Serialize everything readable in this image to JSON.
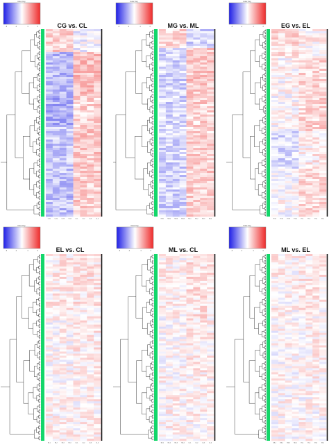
{
  "chart_data": [
    {
      "type": "heatmap",
      "title": "CG vs. CL",
      "legend": {
        "title": "Color Key",
        "ticks": [
          "-3",
          "-1",
          "1",
          "3"
        ],
        "low_color": "#1f1fe6",
        "mid_color": "#ffffff",
        "high_color": "#ee2a2a",
        "placement": "top-left"
      },
      "columns": [
        "CG1",
        "CG2",
        "CG3",
        "CG4",
        "CL1",
        "CL2",
        "CL3",
        "CL4"
      ],
      "row_colorbar_color": "#13d66a",
      "pattern": {
        "split_at_column": 4,
        "blocks": [
          {
            "start": 0.0,
            "end": 0.12,
            "left": 0.4,
            "right": -0.1
          },
          {
            "start": 0.12,
            "end": 0.34,
            "left": -0.55,
            "right": 0.55
          },
          {
            "start": 0.34,
            "end": 0.52,
            "left": -0.65,
            "right": 0.35
          },
          {
            "start": 0.52,
            "end": 0.78,
            "left": -0.45,
            "right": 0.45
          },
          {
            "start": 0.78,
            "end": 1.0,
            "left": -0.5,
            "right": 0.4
          }
        ]
      }
    },
    {
      "type": "heatmap",
      "title": "MG vs. ML",
      "legend": {
        "title": "Color Key",
        "ticks": [
          "-3",
          "-1",
          "1",
          "3"
        ],
        "low_color": "#1f1fe6",
        "mid_color": "#ffffff",
        "high_color": "#ee2a2a",
        "placement": "top-left"
      },
      "columns": [
        "MG1",
        "MG2",
        "MG3",
        "MG4",
        "ML1",
        "ML2",
        "ML3",
        "ML4"
      ],
      "row_colorbar_color": "#13d66a",
      "pattern": {
        "split_at_column": 4,
        "blocks": [
          {
            "start": 0.0,
            "end": 0.1,
            "left": 0.35,
            "right": -0.35
          },
          {
            "start": 0.1,
            "end": 0.4,
            "left": -0.35,
            "right": 0.45
          },
          {
            "start": 0.4,
            "end": 0.7,
            "left": -0.3,
            "right": 0.35
          },
          {
            "start": 0.7,
            "end": 1.0,
            "left": -0.35,
            "right": 0.4
          }
        ]
      }
    },
    {
      "type": "heatmap",
      "title": "EG vs. EL",
      "legend": {
        "title": "Color Key",
        "ticks": [
          "-3",
          "-1",
          "1",
          "3"
        ],
        "low_color": "#1f1fe6",
        "mid_color": "#ffffff",
        "high_color": "#ee2a2a",
        "placement": "top-left"
      },
      "columns": [
        "EG1",
        "EG2",
        "EG3",
        "EG4",
        "EL1",
        "EL2",
        "EL3",
        "EL4"
      ],
      "row_colorbar_color": "#13d66a",
      "pattern": {
        "split_at_column": 4,
        "blocks": [
          {
            "start": 0.0,
            "end": 0.15,
            "left": 0.3,
            "right": 0.1
          },
          {
            "start": 0.15,
            "end": 0.55,
            "left": 0.05,
            "right": 0.35
          },
          {
            "start": 0.55,
            "end": 0.75,
            "left": -0.3,
            "right": 0.15
          },
          {
            "start": 0.75,
            "end": 1.0,
            "left": 0.0,
            "right": 0.3
          }
        ]
      }
    },
    {
      "type": "heatmap",
      "title": "EL vs. CL",
      "legend": {
        "title": "Color Key",
        "ticks": [
          "-3",
          "-1",
          "1",
          "3"
        ],
        "low_color": "#1f1fe6",
        "mid_color": "#ffffff",
        "high_color": "#ee2a2a",
        "placement": "top-left"
      },
      "columns": [
        "EL1",
        "EL2",
        "EL3",
        "EL4",
        "CL1",
        "CL2",
        "CL3",
        "CL4"
      ],
      "row_colorbar_color": "#13d66a",
      "pattern": {
        "split_at_column": 4,
        "blocks": [
          {
            "start": 0.0,
            "end": 0.3,
            "left": 0.15,
            "right": 0.2
          },
          {
            "start": 0.3,
            "end": 0.6,
            "left": 0.05,
            "right": 0.15
          },
          {
            "start": 0.6,
            "end": 1.0,
            "left": 0.1,
            "right": 0.1
          }
        ]
      }
    },
    {
      "type": "heatmap",
      "title": "ML vs. CL",
      "legend": {
        "title": "Color Key",
        "ticks": [
          "-3",
          "-1",
          "1",
          "3"
        ],
        "low_color": "#1f1fe6",
        "mid_color": "#ffffff",
        "high_color": "#ee2a2a",
        "placement": "top-left"
      },
      "columns": [
        "ML1",
        "ML2",
        "ML3",
        "ML4",
        "CL1",
        "CL2",
        "CL3",
        "CL4"
      ],
      "row_colorbar_color": "#13d66a",
      "pattern": {
        "split_at_column": 4,
        "blocks": [
          {
            "start": 0.0,
            "end": 0.35,
            "left": 0.1,
            "right": 0.25
          },
          {
            "start": 0.35,
            "end": 0.65,
            "left": 0.05,
            "right": 0.15
          },
          {
            "start": 0.65,
            "end": 1.0,
            "left": 0.1,
            "right": 0.1
          }
        ]
      }
    },
    {
      "type": "heatmap",
      "title": "ML vs. EL",
      "legend": {
        "title": "Color Key",
        "ticks": [
          "-3",
          "-1",
          "1",
          "3"
        ],
        "low_color": "#1f1fe6",
        "mid_color": "#ffffff",
        "high_color": "#ee2a2a",
        "placement": "top-left"
      },
      "columns": [
        "ML1",
        "ML2",
        "ML3",
        "ML4",
        "EL1",
        "EL2",
        "EL3",
        "EL4"
      ],
      "row_colorbar_color": "#13d66a",
      "pattern": {
        "split_at_column": 4,
        "blocks": [
          {
            "start": 0.0,
            "end": 0.3,
            "left": 0.1,
            "right": 0.2
          },
          {
            "start": 0.3,
            "end": 0.7,
            "left": 0.05,
            "right": 0.1
          },
          {
            "start": 0.7,
            "end": 1.0,
            "left": 0.05,
            "right": 0.05
          }
        ]
      }
    }
  ]
}
